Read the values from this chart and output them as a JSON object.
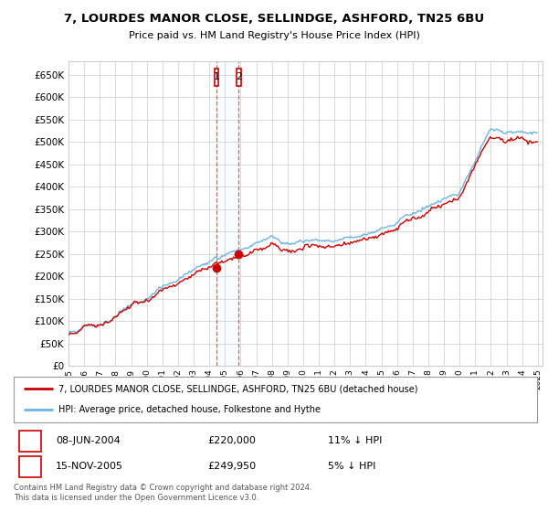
{
  "title": "7, LOURDES MANOR CLOSE, SELLINDGE, ASHFORD, TN25 6BU",
  "subtitle": "Price paid vs. HM Land Registry's House Price Index (HPI)",
  "legend_line1": "7, LOURDES MANOR CLOSE, SELLINDGE, ASHFORD, TN25 6BU (detached house)",
  "legend_line2": "HPI: Average price, detached house, Folkestone and Hythe",
  "transaction1_date": "08-JUN-2004",
  "transaction1_price": 220000,
  "transaction1_hpi": "11% ↓ HPI",
  "transaction2_date": "15-NOV-2005",
  "transaction2_price": 249950,
  "transaction2_hpi": "5% ↓ HPI",
  "footer": "Contains HM Land Registry data © Crown copyright and database right 2024.\nThis data is licensed under the Open Government Licence v3.0.",
  "hpi_color": "#6cb4e4",
  "price_color": "#cc0000",
  "background_color": "#ffffff",
  "grid_color": "#cccccc",
  "ylim_min": 0,
  "ylim_max": 680000,
  "yticks": [
    0,
    50000,
    100000,
    150000,
    200000,
    250000,
    300000,
    350000,
    400000,
    450000,
    500000,
    550000,
    600000,
    650000
  ]
}
